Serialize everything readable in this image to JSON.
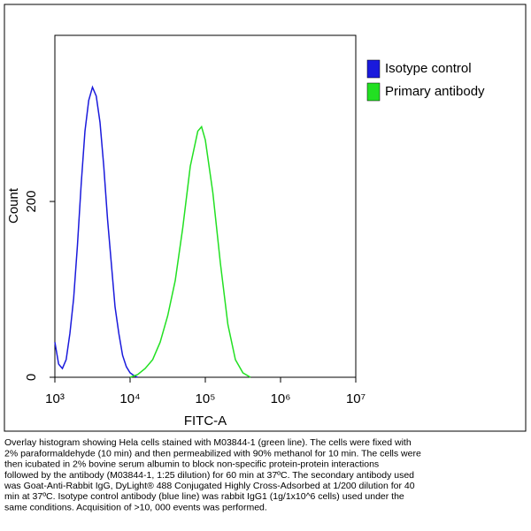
{
  "chart_data": {
    "type": "line",
    "xlabel": "FITC-A",
    "ylabel": "Count",
    "xscale": "log",
    "xlim": [
      1000,
      10000000
    ],
    "ylim": [
      0,
      389
    ],
    "xticks": [
      {
        "value": 1000,
        "label": "10³"
      },
      {
        "value": 10000,
        "label": "10⁴"
      },
      {
        "value": 100000,
        "label": "10⁵"
      },
      {
        "value": 1000000,
        "label": "10⁶"
      },
      {
        "value": 10000000,
        "label": "10⁷"
      }
    ],
    "yticks": [
      0,
      200
    ],
    "legend": "top right",
    "series": [
      {
        "name": "Isotype control",
        "color": "#1a1adc",
        "x": [
          1000,
          1122,
          1259,
          1413,
          1585,
          1778,
          1995,
          2239,
          2512,
          2818,
          3162,
          3548,
          3981,
          4467,
          5012,
          5623,
          6310,
          7079,
          7943,
          8913,
          10000,
          11220,
          12589
        ],
        "values": [
          40,
          15,
          10,
          20,
          50,
          90,
          150,
          220,
          280,
          315,
          330,
          320,
          290,
          240,
          180,
          130,
          80,
          50,
          25,
          12,
          5,
          2,
          0
        ]
      },
      {
        "name": "Primary antibody",
        "color": "#22e022",
        "x": [
          10000,
          12589,
          15849,
          19953,
          25119,
          31623,
          39811,
          50119,
          63096,
          79433,
          89125,
          100000,
          125893,
          158489,
          199526,
          251189,
          316228,
          398107
        ],
        "values": [
          0,
          3,
          10,
          20,
          40,
          70,
          110,
          170,
          240,
          280,
          285,
          270,
          210,
          130,
          60,
          20,
          5,
          0
        ]
      }
    ]
  },
  "caption": [
    "Overlay histogram showing Hela cells stained with M03844-1 (green line). The cells were fixed with",
    "2% paraformaldehyde (10 min) and then permeabilized with 90% methanol for 10 min. The cells were",
    "then icubated in 2% bovine serum albumin to block non-specific protein-protein interactions",
    "followed by the antibody (M03844-1, 1:25 dilution) for 60 min at 37ºC. The secondary antibody used",
    "was Goat-Anti-Rabbit IgG, DyLight® 488 Conjugated Highly Cross-Adsorbed at 1/200 dilution for 40",
    "min at 37ºC. Isotype control antibody (blue line) was rabbit IgG1 (1g/1x10^6 cells) used under the",
    "same conditions. Acquisition of >10, 000 events was performed."
  ]
}
